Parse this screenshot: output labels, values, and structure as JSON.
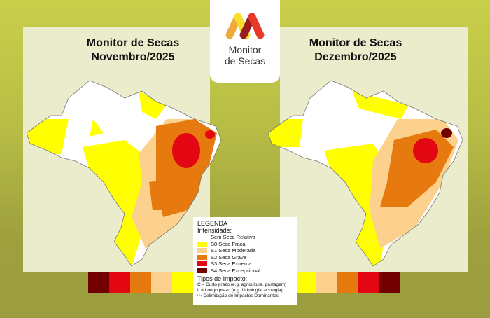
{
  "logo": {
    "line1": "Monitor",
    "line2": "de Secas",
    "colors": [
      "#f2a93b",
      "#f5df2a",
      "#9b1c1c",
      "#e53a2a"
    ]
  },
  "maps": [
    {
      "title_line1": "Monitor de Secas",
      "title_line2": "Novembro/2025"
    },
    {
      "title_line1": "Monitor de Secas",
      "title_line2": "Dezembro/2025"
    }
  ],
  "legend": {
    "title": "LEGENDA",
    "intensity_label": "Intensidade:",
    "items": [
      {
        "label": "Sem Seca Relativa",
        "color": "#ffffff"
      },
      {
        "label": "S0 Seca Fraca",
        "color": "#ffff00"
      },
      {
        "label": "S1 Seca Moderada",
        "color": "#fcd18d"
      },
      {
        "label": "S2 Seca Grave",
        "color": "#e67a0e"
      },
      {
        "label": "S3 Seca Extrema",
        "color": "#e30613"
      },
      {
        "label": "S4 Seca Excepcional",
        "color": "#730000"
      }
    ],
    "impact_label": "Tipos de Impacto:",
    "impact_c": "C = Curto prazo (e.g. agricultura, pastagem)",
    "impact_l": "L = Longo prazo (e.g. hidrologia, ecologia)",
    "boundary": "Delimitação de Impactos Dominantes"
  },
  "stripe_colors": [
    "#730000",
    "#e30613",
    "#e67a0e",
    "#fcd18d",
    "#ffff00"
  ]
}
